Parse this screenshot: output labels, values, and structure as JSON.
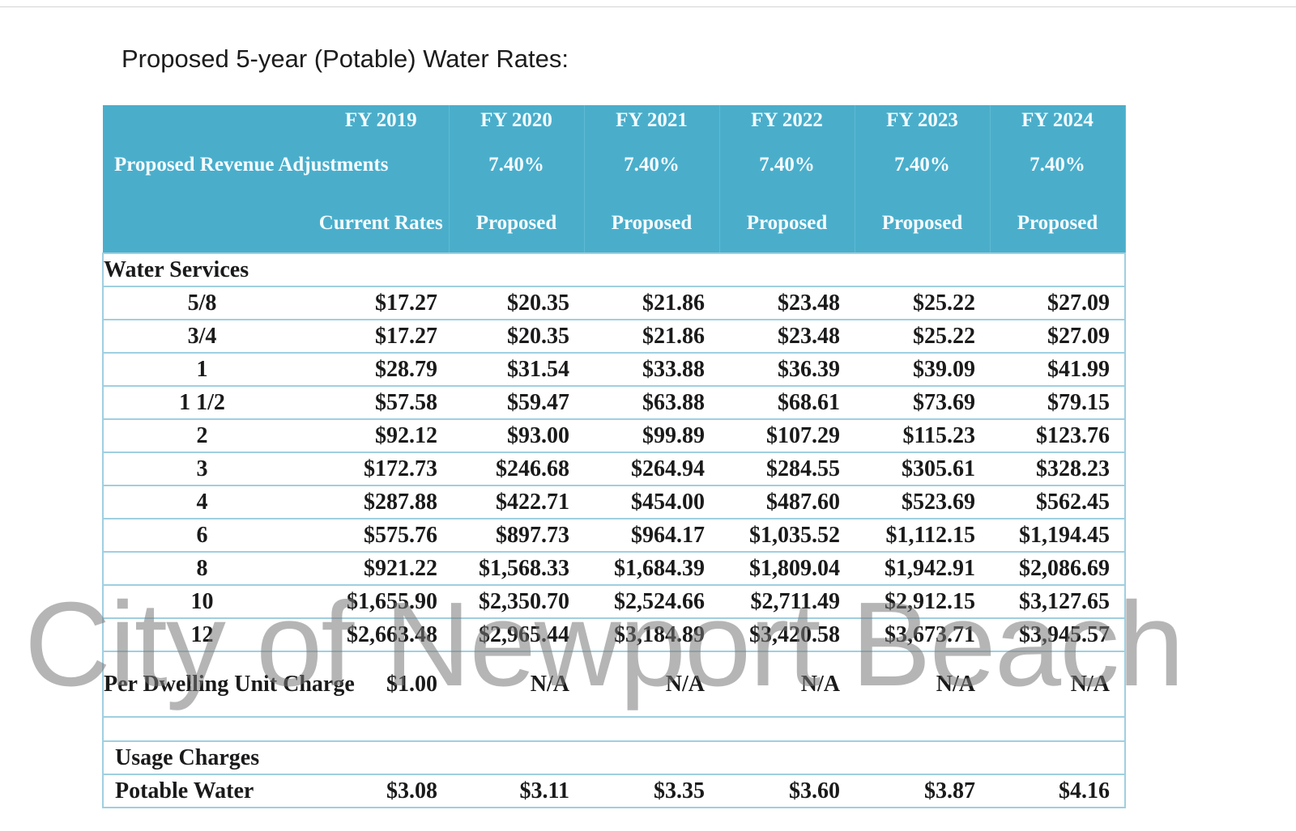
{
  "document": {
    "title": "Proposed 5-year (Potable) Water Rates:"
  },
  "table": {
    "years": [
      "FY 2019",
      "FY 2020",
      "FY 2021",
      "FY 2022",
      "FY 2023",
      "FY 2024"
    ],
    "adjustments_label": "Proposed Revenue Adjustments",
    "adjustments": [
      "",
      "7.40%",
      "7.40%",
      "7.40%",
      "7.40%",
      "7.40%"
    ],
    "status": [
      "Current Rates",
      "Proposed",
      "Proposed",
      "Proposed",
      "Proposed",
      "Proposed"
    ],
    "water_services_label": "Water Services",
    "water_services": [
      {
        "size": "5/8",
        "values": [
          "$17.27",
          "$20.35",
          "$21.86",
          "$23.48",
          "$25.22",
          "$27.09"
        ]
      },
      {
        "size": "3/4",
        "values": [
          "$17.27",
          "$20.35",
          "$21.86",
          "$23.48",
          "$25.22",
          "$27.09"
        ]
      },
      {
        "size": "1",
        "values": [
          "$28.79",
          "$31.54",
          "$33.88",
          "$36.39",
          "$39.09",
          "$41.99"
        ]
      },
      {
        "size": "1 1/2",
        "values": [
          "$57.58",
          "$59.47",
          "$63.88",
          "$68.61",
          "$73.69",
          "$79.15"
        ]
      },
      {
        "size": "2",
        "values": [
          "$92.12",
          "$93.00",
          "$99.89",
          "$107.29",
          "$115.23",
          "$123.76"
        ]
      },
      {
        "size": "3",
        "values": [
          "$172.73",
          "$246.68",
          "$264.94",
          "$284.55",
          "$305.61",
          "$328.23"
        ]
      },
      {
        "size": "4",
        "values": [
          "$287.88",
          "$422.71",
          "$454.00",
          "$487.60",
          "$523.69",
          "$562.45"
        ]
      },
      {
        "size": "6",
        "values": [
          "$575.76",
          "$897.73",
          "$964.17",
          "$1,035.52",
          "$1,112.15",
          "$1,194.45"
        ]
      },
      {
        "size": "8",
        "values": [
          "$921.22",
          "$1,568.33",
          "$1,684.39",
          "$1,809.04",
          "$1,942.91",
          "$2,086.69"
        ]
      },
      {
        "size": "10",
        "values": [
          "$1,655.90",
          "$2,350.70",
          "$2,524.66",
          "$2,711.49",
          "$2,912.15",
          "$3,127.65"
        ]
      },
      {
        "size": "12",
        "values": [
          "$2,663.48",
          "$2,965.44",
          "$3,184.89",
          "$3,420.58",
          "$3,673.71",
          "$3,945.57"
        ]
      }
    ],
    "per_dwelling": {
      "label": "Per Dwelling Unit Charge",
      "values": [
        "$1.00",
        "N/A",
        "N/A",
        "N/A",
        "N/A",
        "N/A"
      ]
    },
    "usage_charges_label": "Usage Charges",
    "potable_water": {
      "label": "Potable Water",
      "values": [
        "$3.08",
        "$3.11",
        "$3.35",
        "$3.60",
        "$3.87",
        "$4.16"
      ]
    }
  },
  "watermark": {
    "text": "City of Newport Beach"
  }
}
